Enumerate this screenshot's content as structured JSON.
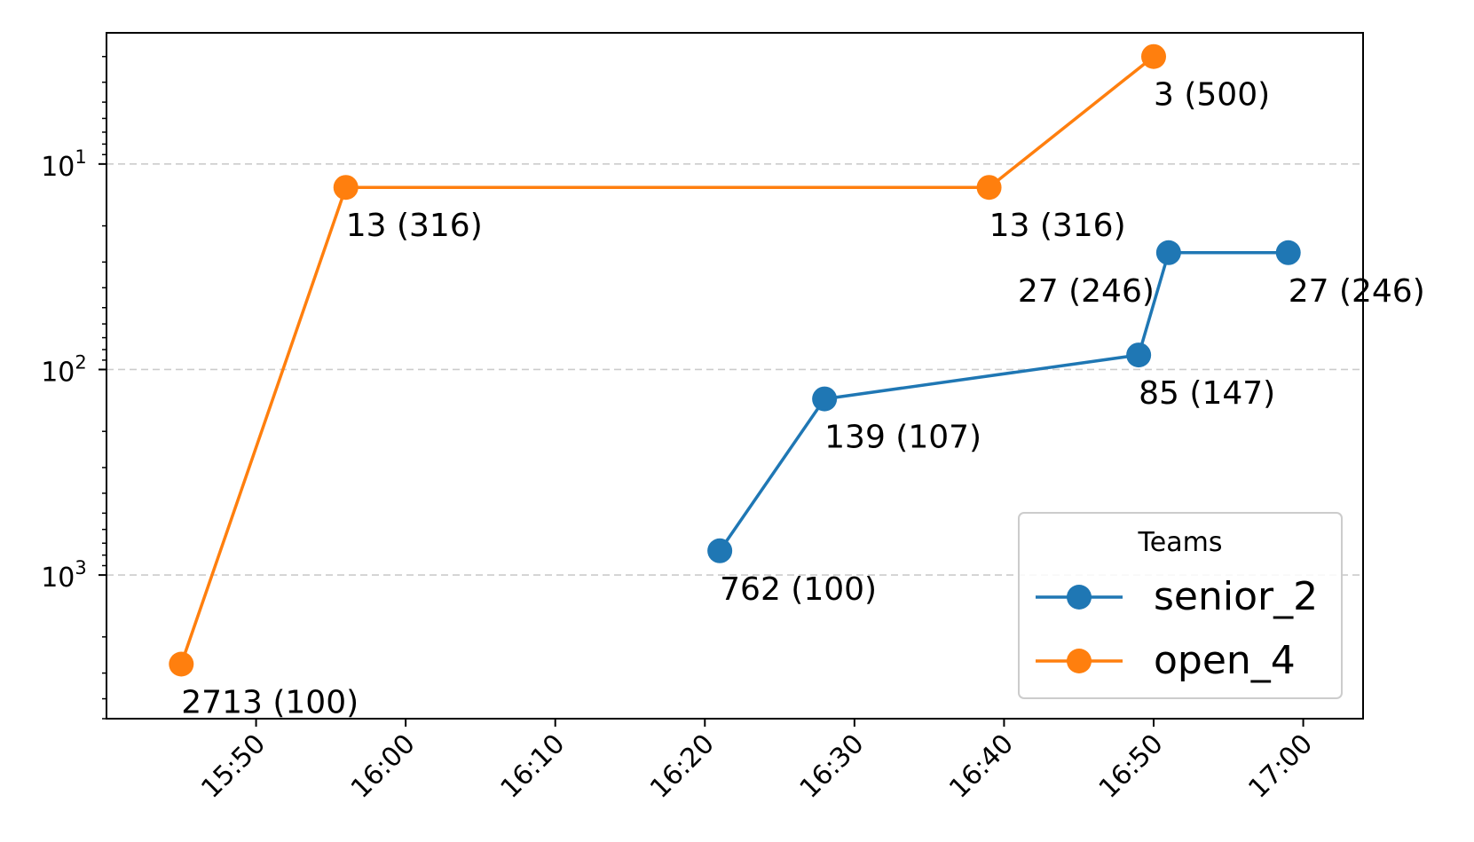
{
  "chart_data": {
    "type": "line",
    "title": "",
    "xlabel": "",
    "ylabel": "",
    "x_axis": {
      "kind": "time",
      "range": [
        "15:40",
        "17:04"
      ],
      "ticks": [
        "15:50",
        "16:00",
        "16:10",
        "16:20",
        "16:30",
        "16:40",
        "16:50",
        "17:00"
      ]
    },
    "y_axis": {
      "scale": "log",
      "inverted": true,
      "range": [
        5000,
        2.3
      ],
      "ticks": [
        {
          "value": 10,
          "base": "10",
          "exp": "1"
        },
        {
          "value": 100,
          "base": "10",
          "exp": "2"
        },
        {
          "value": 1000,
          "base": "10",
          "exp": "3"
        }
      ]
    },
    "grid": {
      "y": true,
      "style": "dashed",
      "color": "#cccccc"
    },
    "legend": {
      "title": "Teams",
      "placement": "lower-right"
    },
    "series": [
      {
        "name": "senior_2",
        "color": "#1f77b4",
        "points": [
          {
            "x": "16:21",
            "y": 762,
            "label": "762 (100)"
          },
          {
            "x": "16:28",
            "y": 139,
            "label": "139 (107)"
          },
          {
            "x": "16:49",
            "y": 85,
            "label": "85 (147)"
          },
          {
            "x": "16:51",
            "y": 27,
            "label": "27 (246)"
          },
          {
            "x": "16:59",
            "y": 27,
            "label": "27 (246)"
          }
        ]
      },
      {
        "name": "open_4",
        "color": "#ff7f0e",
        "points": [
          {
            "x": "15:45",
            "y": 2713,
            "label": "2713 (100)"
          },
          {
            "x": "15:56",
            "y": 13,
            "label": "13 (316)"
          },
          {
            "x": "16:39",
            "y": 13,
            "label": "13 (316)"
          },
          {
            "x": "16:50",
            "y": 3,
            "label": "3 (500)"
          }
        ]
      }
    ]
  }
}
